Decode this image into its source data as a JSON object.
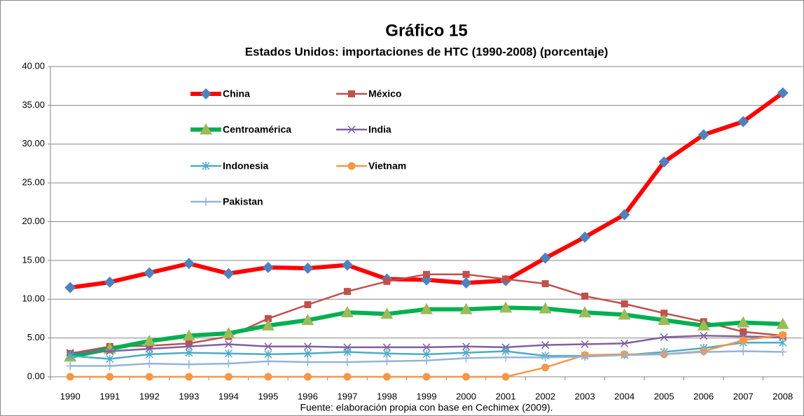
{
  "chart_data": {
    "type": "line",
    "title": "Gráfico 15",
    "subtitle": "Estados Unidos: importaciones de HTC (1990-2008) (porcentaje)",
    "note": "Fuente: elaboración propia con base en Cechimex (2009).",
    "categories": [
      "1990",
      "1991",
      "1992",
      "1993",
      "1994",
      "1995",
      "1996",
      "1997",
      "1998",
      "1999",
      "2000",
      "2001",
      "2002",
      "2003",
      "2004",
      "2005",
      "2006",
      "2007",
      "2008"
    ],
    "ylim": [
      0,
      40
    ],
    "yticks": [
      {
        "value": 0,
        "label": "0.00"
      },
      {
        "value": 5,
        "label": "5.00"
      },
      {
        "value": 10,
        "label": "10.00"
      },
      {
        "value": 15,
        "label": "15.00"
      },
      {
        "value": 20,
        "label": "20.00"
      },
      {
        "value": 25,
        "label": "25.00"
      },
      {
        "value": 30,
        "label": "30.00"
      },
      {
        "value": 35,
        "label": "35.00"
      },
      {
        "value": 40,
        "label": "40.00"
      }
    ],
    "grid": true,
    "series": [
      {
        "name": "China",
        "color": "#ff0000",
        "marker_color": "#4f81bd",
        "marker": "diamond",
        "line_width": 6,
        "values": [
          11.5,
          12.2,
          13.4,
          14.6,
          13.3,
          14.1,
          14.0,
          14.4,
          12.6,
          12.5,
          12.1,
          12.4,
          15.3,
          18.0,
          20.9,
          27.7,
          31.2,
          32.9,
          36.6
        ]
      },
      {
        "name": "México",
        "color": "#c0504d",
        "marker_color": "#c0504d",
        "marker": "square",
        "line_width": 2.5,
        "values": [
          3.0,
          3.9,
          4.0,
          4.3,
          5.2,
          7.5,
          9.3,
          11.0,
          12.3,
          13.2,
          13.2,
          12.6,
          12.0,
          10.4,
          9.4,
          8.2,
          7.1,
          5.8,
          5.3
        ]
      },
      {
        "name": "Centroamérica",
        "color": "#00b050",
        "marker_color": "#9bbb59",
        "marker": "triangle",
        "line_width": 6,
        "values": [
          2.6,
          3.6,
          4.6,
          5.3,
          5.6,
          6.6,
          7.3,
          8.3,
          8.1,
          8.7,
          8.7,
          8.9,
          8.8,
          8.3,
          8.0,
          7.3,
          6.6,
          7.0,
          6.8
        ]
      },
      {
        "name": "India",
        "color": "#7f60a0",
        "marker_color": "#7f60a0",
        "marker": "x",
        "line_width": 2.5,
        "values": [
          3.1,
          3.3,
          3.6,
          3.9,
          4.2,
          3.9,
          3.9,
          3.8,
          3.8,
          3.8,
          3.9,
          3.8,
          4.1,
          4.2,
          4.3,
          5.1,
          5.3,
          5.2,
          5.1
        ]
      },
      {
        "name": "Indonesia",
        "color": "#4bacc6",
        "marker_color": "#4bacc6",
        "marker": "star",
        "line_width": 2.5,
        "values": [
          2.7,
          2.3,
          2.9,
          3.1,
          3.0,
          2.9,
          3.0,
          3.2,
          3.0,
          2.9,
          3.1,
          3.3,
          2.7,
          2.7,
          2.8,
          3.2,
          3.7,
          4.4,
          4.4
        ]
      },
      {
        "name": "Vietnam",
        "color": "#f79646",
        "marker_color": "#f79646",
        "marker": "circle",
        "line_width": 2.5,
        "values": [
          0,
          0,
          0,
          0,
          0,
          0,
          0,
          0,
          0,
          0,
          0,
          0,
          1.2,
          2.8,
          2.9,
          2.9,
          3.3,
          4.7,
          5.4
        ]
      },
      {
        "name": "Pakistan",
        "color": "#95b3d7",
        "marker_color": "#95b3d7",
        "marker": "plus",
        "line_width": 2.5,
        "values": [
          1.4,
          1.4,
          1.7,
          1.6,
          1.7,
          2.0,
          1.9,
          1.9,
          2.0,
          2.1,
          2.4,
          2.5,
          2.5,
          2.6,
          2.8,
          2.9,
          3.2,
          3.3,
          3.2
        ]
      }
    ]
  }
}
